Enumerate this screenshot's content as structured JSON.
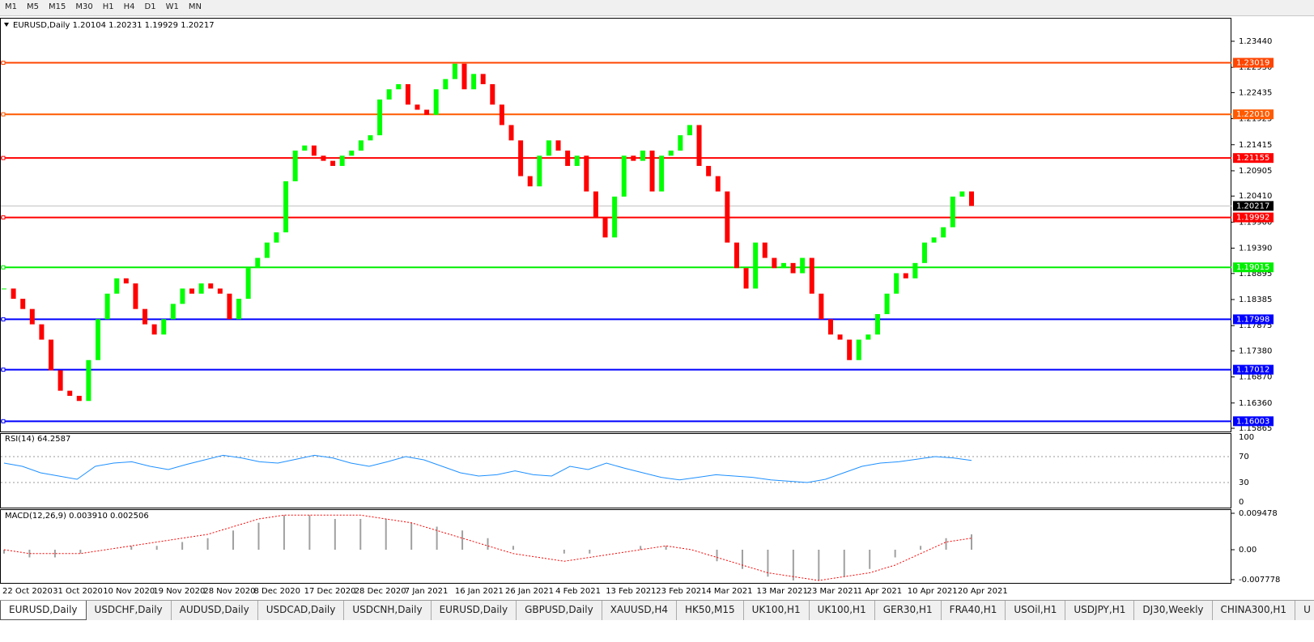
{
  "toolbar": {
    "timeframes": [
      "M1",
      "M5",
      "M15",
      "M30",
      "H1",
      "H4",
      "D1",
      "W1",
      "MN"
    ]
  },
  "chart": {
    "header": "EURUSD,Daily  1.20104 1.20231 1.19929 1.20217",
    "ylim": [
      1.15802,
      1.23883
    ],
    "yticks": [
      {
        "value": 1.2344,
        "label": "1.23440"
      },
      {
        "value": 1.2293,
        "label": "1.22930"
      },
      {
        "value": 1.22435,
        "label": "1.22435"
      },
      {
        "value": 1.21925,
        "label": "1.21925"
      },
      {
        "value": 1.21415,
        "label": "1.21415"
      },
      {
        "value": 1.20905,
        "label": "1.20905"
      },
      {
        "value": 1.2041,
        "label": "1.20410"
      },
      {
        "value": 1.199,
        "label": "1.19900"
      },
      {
        "value": 1.1939,
        "label": "1.19390"
      },
      {
        "value": 1.18895,
        "label": "1.18895"
      },
      {
        "value": 1.18385,
        "label": "1.18385"
      },
      {
        "value": 1.17875,
        "label": "1.17875"
      },
      {
        "value": 1.1738,
        "label": "1.17380"
      },
      {
        "value": 1.1687,
        "label": "1.16870"
      },
      {
        "value": 1.1636,
        "label": "1.16360"
      },
      {
        "value": 1.15865,
        "label": "1.15865"
      }
    ],
    "levels": [
      {
        "value": 1.23019,
        "label": "1.23019",
        "color": "#ff4500"
      },
      {
        "value": 1.2201,
        "label": "1.22010",
        "color": "#ff5a00"
      },
      {
        "value": 1.21155,
        "label": "1.21155",
        "color": "#ff0000"
      },
      {
        "value": 1.19992,
        "label": "1.19992",
        "color": "#ff0000"
      },
      {
        "value": 1.19015,
        "label": "1.19015",
        "color": "#00ee00"
      },
      {
        "value": 1.17998,
        "label": "1.17998",
        "color": "#0000ff"
      },
      {
        "value": 1.17012,
        "label": "1.17012",
        "color": "#0000ff"
      },
      {
        "value": 1.16003,
        "label": "1.16003",
        "color": "#0000ff"
      }
    ],
    "last_price": {
      "value": 1.20217,
      "label": "1.20217"
    },
    "bull_color": "#00ff00",
    "bear_color": "#ff0000",
    "closes": [
      1.186,
      1.184,
      1.182,
      1.179,
      1.176,
      1.17,
      1.166,
      1.165,
      1.164,
      1.172,
      1.18,
      1.185,
      1.188,
      1.187,
      1.182,
      1.179,
      1.177,
      1.18,
      1.183,
      1.186,
      1.185,
      1.187,
      1.186,
      1.185,
      1.18,
      1.184,
      1.19,
      1.192,
      1.195,
      1.197,
      1.207,
      1.213,
      1.214,
      1.212,
      1.211,
      1.21,
      1.212,
      1.213,
      1.215,
      1.216,
      1.223,
      1.225,
      1.226,
      1.222,
      1.221,
      1.22,
      1.225,
      1.227,
      1.23,
      1.225,
      1.228,
      1.226,
      1.222,
      1.218,
      1.215,
      1.208,
      1.206,
      1.212,
      1.215,
      1.213,
      1.21,
      1.212,
      1.205,
      1.2,
      1.196,
      1.204,
      1.212,
      1.211,
      1.213,
      1.205,
      1.212,
      1.213,
      1.216,
      1.218,
      1.21,
      1.208,
      1.205,
      1.195,
      1.19,
      1.186,
      1.195,
      1.192,
      1.19,
      1.191,
      1.189,
      1.192,
      1.185,
      1.18,
      1.177,
      1.176,
      1.172,
      1.176,
      1.177,
      1.181,
      1.185,
      1.189,
      1.188,
      1.191,
      1.195,
      1.196,
      1.198,
      1.204,
      1.205,
      1.20217
    ],
    "dates": [
      "22 Oct 2020",
      "31 Oct 2020",
      "10 Nov 2020",
      "19 Nov 2020",
      "28 Nov 2020",
      "8 Dec 2020",
      "17 Dec 2020",
      "28 Dec 2020",
      "7 Jan 2021",
      "16 Jan 2021",
      "26 Jan 2021",
      "4 Feb 2021",
      "13 Feb 2021",
      "23 Feb 2021",
      "4 Mar 2021",
      "13 Mar 2021",
      "23 Mar 2021",
      "1 Apr 2021",
      "10 Apr 2021",
      "20 Apr 2021"
    ]
  },
  "rsi": {
    "label": "RSI(14) 64.2587",
    "ylim": [
      0,
      100
    ],
    "yticks": [
      100,
      70,
      30,
      0
    ],
    "levels": [
      70,
      30
    ],
    "color": "#1e90ff",
    "values": [
      60,
      55,
      45,
      40,
      35,
      55,
      60,
      62,
      55,
      50,
      58,
      65,
      72,
      68,
      62,
      60,
      66,
      72,
      68,
      60,
      55,
      62,
      70,
      65,
      55,
      45,
      40,
      42,
      48,
      42,
      40,
      55,
      50,
      60,
      52,
      45,
      38,
      34,
      38,
      42,
      40,
      38,
      34,
      32,
      30,
      35,
      45,
      55,
      60,
      62,
      66,
      70,
      68,
      64
    ]
  },
  "macd": {
    "label": "MACD(12,26,9) 0.003910 0.002506",
    "ylim": [
      -0.00821,
      0.01032
    ],
    "yticks": [
      0.009478,
      {
        "value": 0,
        "label": "0.00"
      },
      -0.007778
    ],
    "histogram": [
      -0.001,
      -0.002,
      -0.002,
      -0.001,
      0,
      0.001,
      0.001,
      0.002,
      0.003,
      0.005,
      0.007,
      0.009,
      0.009,
      0.008,
      0.008,
      0.008,
      0.007,
      0.006,
      0.005,
      0.003,
      0.001,
      0,
      -0.001,
      -0.001,
      0,
      0.001,
      0.001,
      0,
      -0.003,
      -0.005,
      -0.007,
      -0.008,
      -0.008,
      -0.007,
      -0.005,
      -0.002,
      0.001,
      0.003,
      0.004
    ],
    "signal": [
      0,
      -0.001,
      -0.001,
      -0.001,
      0,
      0.001,
      0.002,
      0.003,
      0.004,
      0.006,
      0.008,
      0.009,
      0.009,
      0.009,
      0.009,
      0.008,
      0.007,
      0.005,
      0.003,
      0.001,
      -0.001,
      -0.002,
      -0.003,
      -0.002,
      -0.001,
      0,
      0.001,
      0,
      -0.002,
      -0.004,
      -0.006,
      -0.007,
      -0.008,
      -0.007,
      -0.006,
      -0.004,
      -0.001,
      0.002,
      0.003
    ]
  },
  "tabs": [
    "EURUSD,Daily",
    "USDCHF,Daily",
    "AUDUSD,Daily",
    "USDCAD,Daily",
    "USDCNH,Daily",
    "EURUSD,Daily",
    "GBPUSD,Daily",
    "XAUUSD,H4",
    "HK50,M15",
    "UK100,H1",
    "UK100,H1",
    "GER30,H1",
    "FRA40,H1",
    "USOil,H1",
    "USDJPY,H1",
    "DJ30,Weekly",
    "CHINA300,H1",
    "U"
  ]
}
